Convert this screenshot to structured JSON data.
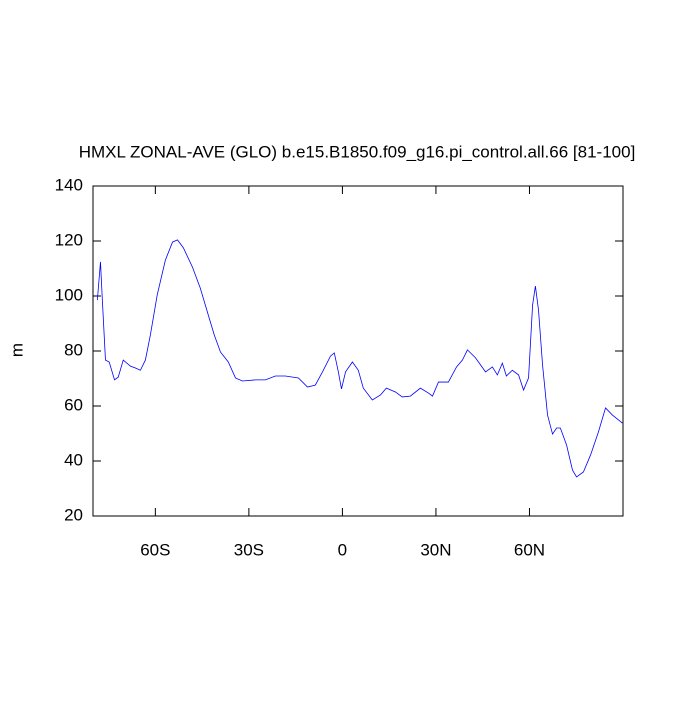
{
  "chart_data": {
    "type": "line",
    "title": "HMXL ZONAL-AVE (GLO) b.e15.B1850.f09_g16.pi_control.all.66 [81-100]",
    "y_label": "m",
    "x": [
      -78.6,
      -77.6,
      -77.0,
      -76.0,
      -74.8,
      -73.1,
      -71.9,
      -70.3,
      -68.0,
      -66.4,
      -64.8,
      -63.2,
      -61.6,
      -59.4,
      -56.8,
      -54.5,
      -52.9,
      -51.0,
      -48.1,
      -45.6,
      -43.0,
      -41.1,
      -39.1,
      -36.6,
      -34.3,
      -32.1,
      -27.9,
      -24.7,
      -21.5,
      -18.3,
      -14.1,
      -11.2,
      -8.7,
      -6.4,
      -3.8,
      -2.6,
      -1.3,
      -0.3,
      1.0,
      3.2,
      5.1,
      6.7,
      9.6,
      12.2,
      14.1,
      17.0,
      19.2,
      21.8,
      25.0,
      27.6,
      28.9,
      30.8,
      34.0,
      36.6,
      38.5,
      40.1,
      42.7,
      45.9,
      48.1,
      49.7,
      51.3,
      52.6,
      54.5,
      56.5,
      58.1,
      59.7,
      61.0,
      61.9,
      62.9,
      64.2,
      65.8,
      67.4,
      68.7,
      69.9,
      71.9,
      73.8,
      75.1,
      77.3,
      79.6,
      82.1,
      84.4,
      86.6,
      89.8
    ],
    "series": [
      {
        "color": "#0000ff",
        "values": [
          98.5,
          112.4,
          98.5,
          76.7,
          76.0,
          69.5,
          70.5,
          76.7,
          74.5,
          73.8,
          73.0,
          76.7,
          85.8,
          100.4,
          113.0,
          119.6,
          120.4,
          117.5,
          110.5,
          102.9,
          93.0,
          85.8,
          79.6,
          76.0,
          70.2,
          69.1,
          69.5,
          69.5,
          70.9,
          70.9,
          70.2,
          66.9,
          67.6,
          72.4,
          78.2,
          79.3,
          72.4,
          66.2,
          72.4,
          76.0,
          73.0,
          66.5,
          62.2,
          64.0,
          66.5,
          65.1,
          63.3,
          63.6,
          66.5,
          64.7,
          63.6,
          68.7,
          68.7,
          74.2,
          76.7,
          80.4,
          77.5,
          72.4,
          74.2,
          71.3,
          75.6,
          70.9,
          73.0,
          71.3,
          65.8,
          70.2,
          96.7,
          103.6,
          94.9,
          74.9,
          56.7,
          49.8,
          52.0,
          52.0,
          45.8,
          36.7,
          34.2,
          36.0,
          42.2,
          50.5,
          59.3,
          56.7,
          53.8
        ]
      }
    ],
    "xlim": [
      -80,
      90
    ],
    "xticks": [
      {
        "value": -60,
        "label": "60S"
      },
      {
        "value": -30,
        "label": "30S"
      },
      0,
      {
        "value": 30,
        "label": "30N"
      },
      {
        "value": 60,
        "label": "60N"
      }
    ],
    "ylim": [
      20,
      140
    ],
    "yticks": [
      20,
      40,
      60,
      80,
      100,
      120,
      140
    ]
  }
}
